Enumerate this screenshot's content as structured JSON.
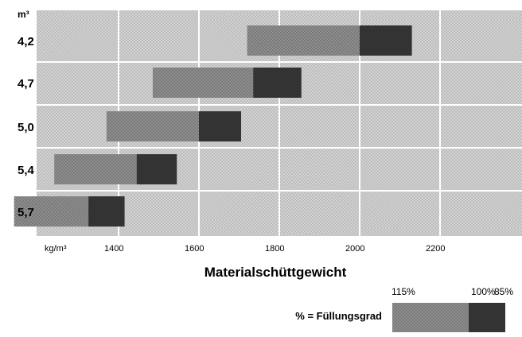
{
  "chart_data": {
    "type": "bar",
    "orientation": "horizontal-range",
    "unit_label": "m³",
    "xlabel": "Materialschüttgewicht",
    "x_unit_label": "kg/m³",
    "x_ticks": [
      1400,
      1600,
      1800,
      2000,
      2200
    ],
    "x_tick_labels": [
      "1400",
      "1600",
      "1800",
      "2000",
      "2200"
    ],
    "xlim": [
      1200,
      2400
    ],
    "grid": true,
    "categories": [
      "4,2",
      "4,7",
      "5,0",
      "5,4",
      "5,7"
    ],
    "series": [
      {
        "name": "115%",
        "color": "#8c8c8c",
        "ranges": [
          [
            1720,
            2000
          ],
          [
            1485,
            1735
          ],
          [
            1370,
            1600
          ],
          [
            1240,
            1445
          ],
          [
            1140,
            1325
          ]
        ]
      },
      {
        "name": "100% - 85%",
        "color": "#333333",
        "ranges": [
          [
            2000,
            2130
          ],
          [
            1735,
            1855
          ],
          [
            1600,
            1705
          ],
          [
            1445,
            1545
          ],
          [
            1325,
            1415
          ]
        ]
      }
    ],
    "legend": {
      "caption": "% = Füllungsgrad",
      "labels": [
        "115%",
        "100%",
        "85%"
      ]
    }
  }
}
